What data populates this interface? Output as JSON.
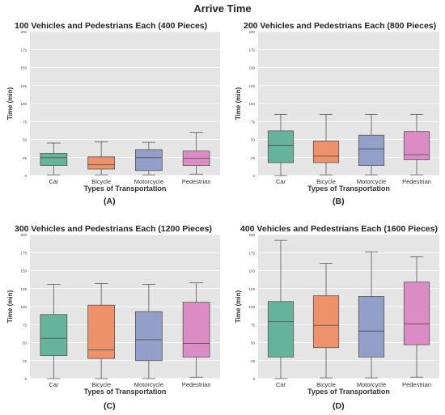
{
  "figure_title": "Arrive Time",
  "chart_data": [
    {
      "type": "box",
      "panel_label": "(A)",
      "title": "100 Vehicles and Pedestrians Each (400 Pieces)",
      "xlabel": "Types of Transportation",
      "ylabel": "Time (min)",
      "ylim": [
        0,
        200
      ],
      "yticks": [
        "0",
        "25",
        "50",
        "75",
        "100",
        "125",
        "150",
        "175",
        "200"
      ],
      "grid": true,
      "categories": [
        "Car",
        "Bicycle",
        "Motorcycle",
        "Pedestrian"
      ],
      "boxes": [
        {
          "min": 1,
          "q1": 14,
          "median": 25,
          "q3": 31,
          "max": 45
        },
        {
          "min": 1,
          "q1": 9,
          "median": 15,
          "q3": 26,
          "max": 47
        },
        {
          "min": 1,
          "q1": 7,
          "median": 25,
          "q3": 36,
          "max": 46
        },
        {
          "min": 2,
          "q1": 14,
          "median": 24,
          "q3": 34,
          "max": 60
        }
      ]
    },
    {
      "type": "box",
      "panel_label": "(B)",
      "title": "200 Vehicles and Pedestrians Each (800 Pieces)",
      "xlabel": "Types of Transportation",
      "ylabel": "Time (min)",
      "ylim": [
        0,
        200
      ],
      "yticks": [
        "0",
        "25",
        "50",
        "75",
        "100",
        "125",
        "150",
        "175",
        "200"
      ],
      "grid": true,
      "categories": [
        "Car",
        "Bicycle",
        "Motorcycle",
        "Pedestrian"
      ],
      "boxes": [
        {
          "min": 0,
          "q1": 18,
          "median": 42,
          "q3": 62,
          "max": 85
        },
        {
          "min": 1,
          "q1": 18,
          "median": 27,
          "q3": 48,
          "max": 85
        },
        {
          "min": 1,
          "q1": 14,
          "median": 37,
          "q3": 56,
          "max": 85
        },
        {
          "min": 1,
          "q1": 22,
          "median": 29,
          "q3": 61,
          "max": 85
        }
      ]
    },
    {
      "type": "box",
      "panel_label": "(C)",
      "title": "300 Vehicles and Pedestrians Each (1200 Pieces)",
      "xlabel": "Types of Transportation",
      "ylabel": "Time (min)",
      "ylim": [
        0,
        200
      ],
      "yticks": [
        "0",
        "25",
        "50",
        "75",
        "100",
        "125",
        "150",
        "175",
        "200"
      ],
      "grid": true,
      "categories": [
        "Car",
        "Bicycle",
        "Motorcycle",
        "Pedestrian"
      ],
      "boxes": [
        {
          "min": 0,
          "q1": 32,
          "median": 56,
          "q3": 89,
          "max": 131
        },
        {
          "min": 0,
          "q1": 28,
          "median": 40,
          "q3": 102,
          "max": 132
        },
        {
          "min": 0,
          "q1": 25,
          "median": 54,
          "q3": 93,
          "max": 131
        },
        {
          "min": 2,
          "q1": 30,
          "median": 49,
          "q3": 106,
          "max": 133
        }
      ]
    },
    {
      "type": "box",
      "panel_label": "(D)",
      "title": "400 Vehicles and Pedestrians Each (1600 Pieces)",
      "xlabel": "Types of Transportation",
      "ylabel": "Time (min)",
      "ylim": [
        0,
        200
      ],
      "yticks": [
        "0",
        "25",
        "50",
        "75",
        "100",
        "125",
        "150",
        "175",
        "200"
      ],
      "grid": true,
      "categories": [
        "Car",
        "Bicycle",
        "Motorcycle",
        "Pedestrian"
      ],
      "boxes": [
        {
          "min": 0,
          "q1": 30,
          "median": 79,
          "q3": 107,
          "max": 192
        },
        {
          "min": 1,
          "q1": 43,
          "median": 74,
          "q3": 115,
          "max": 160
        },
        {
          "min": 1,
          "q1": 30,
          "median": 66,
          "q3": 114,
          "max": 176
        },
        {
          "min": 2,
          "q1": 47,
          "median": 76,
          "q3": 134,
          "max": 169
        }
      ]
    }
  ],
  "colors": {
    "plot_background": "#e5e5e5",
    "grid": "#ffffff",
    "whisker": "#555555",
    "series": [
      "#66b39b",
      "#ed926b",
      "#929fc8",
      "#dc8cc5"
    ]
  }
}
